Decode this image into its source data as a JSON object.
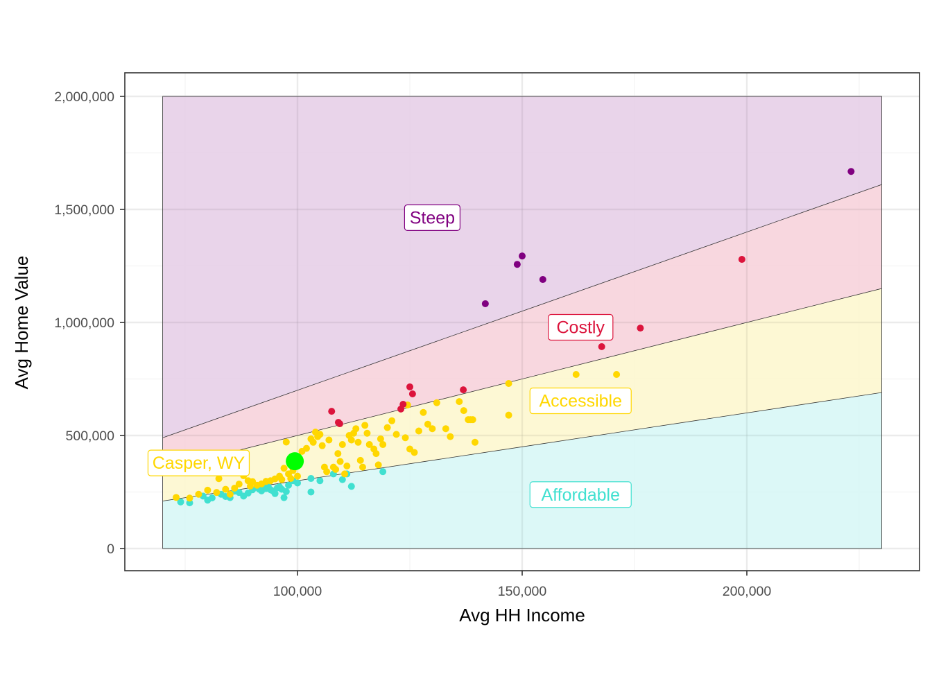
{
  "chart_data": {
    "type": "scatter",
    "title": "",
    "xlabel": "Avg HH Income",
    "ylabel": "Avg Home Value",
    "xlim": [
      62000,
      238000
    ],
    "ylim": [
      -100000,
      2100000
    ],
    "x_ticks": [
      {
        "value": 100000,
        "label": "100,000"
      },
      {
        "value": 150000,
        "label": "150,000"
      },
      {
        "value": 200000,
        "label": "200,000"
      }
    ],
    "y_ticks": [
      {
        "value": 0,
        "label": "0"
      },
      {
        "value": 500000,
        "label": "500,000"
      },
      {
        "value": 1000000,
        "label": "1,000,000"
      },
      {
        "value": 1500000,
        "label": "1,500,000"
      },
      {
        "value": 2000000,
        "label": "2,000,000"
      }
    ],
    "grid": true,
    "legend": "none",
    "regions": {
      "x_range": [
        70000,
        230000
      ],
      "y_max": 2000000,
      "bands": [
        {
          "name": "Affordable",
          "lower_ratio": 0,
          "upper_ratio": 3,
          "fill": "#d6f7f6",
          "color": "#40e0d0"
        },
        {
          "name": "Accessible",
          "lower_ratio": 3,
          "upper_ratio": 5,
          "fill": "#fdf7cc",
          "color": "#ffd700"
        },
        {
          "name": "Costly",
          "lower_ratio": 5,
          "upper_ratio": 7,
          "fill": "#f7d0d9",
          "color": "#dc143c"
        },
        {
          "name": "Steep",
          "lower_ratio": 7,
          "upper_ratio": null,
          "fill": "#e5cce6",
          "color": "#800080"
        }
      ]
    },
    "annotations": [
      {
        "text": "Steep",
        "x": 130000,
        "y": 1465000,
        "color": "#800080"
      },
      {
        "text": "Costly",
        "x": 163000,
        "y": 980000,
        "color": "#dc143c"
      },
      {
        "text": "Accessible",
        "x": 163000,
        "y": 655000,
        "color": "#ffd700"
      },
      {
        "text": "Affordable",
        "x": 163000,
        "y": 240000,
        "color": "#40e0d0"
      },
      {
        "text": "Casper, WY",
        "x": 78000,
        "y": 380000,
        "color": "#ffd700"
      }
    ],
    "highlight": {
      "name": "Casper, WY",
      "x": 99400,
      "y": 386000,
      "color": "#00ff00"
    },
    "series": [
      {
        "name": "Steep",
        "color": "#800080",
        "points": [
          [
            223200,
            1668000
          ],
          [
            150000,
            1294000
          ],
          [
            148900,
            1257000
          ],
          [
            154600,
            1190000
          ],
          [
            141800,
            1083000
          ]
        ]
      },
      {
        "name": "Costly",
        "color": "#dc143c",
        "points": [
          [
            198900,
            1279000
          ],
          [
            176300,
            975000
          ],
          [
            167700,
            893000
          ],
          [
            125000,
            715000
          ],
          [
            125600,
            684000
          ],
          [
            136900,
            702000
          ],
          [
            123500,
            638000
          ],
          [
            123000,
            617000
          ],
          [
            107600,
            607000
          ],
          [
            109100,
            558000
          ],
          [
            109400,
            552000
          ]
        ]
      },
      {
        "name": "Accessible",
        "color": "#ffd700",
        "points": [
          [
            73000,
            226000
          ],
          [
            76000,
            223000
          ],
          [
            78000,
            240000
          ],
          [
            80000,
            258000
          ],
          [
            82000,
            248000
          ],
          [
            82500,
            309000
          ],
          [
            84000,
            262000
          ],
          [
            85000,
            240000
          ],
          [
            86000,
            267000
          ],
          [
            87000,
            285000
          ],
          [
            88000,
            322000
          ],
          [
            89000,
            300000
          ],
          [
            89500,
            276000
          ],
          [
            90000,
            296000
          ],
          [
            91000,
            280000
          ],
          [
            92000,
            286000
          ],
          [
            93000,
            297000
          ],
          [
            94000,
            300000
          ],
          [
            95000,
            308000
          ],
          [
            96000,
            320000
          ],
          [
            96500,
            305000
          ],
          [
            97000,
            355000
          ],
          [
            97500,
            471000
          ],
          [
            98000,
            330000
          ],
          [
            98500,
            310000
          ],
          [
            99000,
            345000
          ],
          [
            100000,
            320000
          ],
          [
            100500,
            395000
          ],
          [
            101000,
            430000
          ],
          [
            102000,
            443000
          ],
          [
            103000,
            485000
          ],
          [
            103500,
            470000
          ],
          [
            104000,
            515000
          ],
          [
            104500,
            495000
          ],
          [
            105000,
            505000
          ],
          [
            105500,
            455000
          ],
          [
            106000,
            360000
          ],
          [
            106500,
            340000
          ],
          [
            107000,
            480000
          ],
          [
            108000,
            360000
          ],
          [
            108500,
            350000
          ],
          [
            109000,
            420000
          ],
          [
            109500,
            385000
          ],
          [
            110000,
            460000
          ],
          [
            110500,
            330000
          ],
          [
            111000,
            365000
          ],
          [
            111500,
            500000
          ],
          [
            112000,
            480000
          ],
          [
            112500,
            510000
          ],
          [
            113000,
            530000
          ],
          [
            113500,
            470000
          ],
          [
            114000,
            390000
          ],
          [
            114500,
            360000
          ],
          [
            115000,
            545000
          ],
          [
            115500,
            510000
          ],
          [
            116000,
            460000
          ],
          [
            117000,
            440000
          ],
          [
            117500,
            420000
          ],
          [
            118000,
            370000
          ],
          [
            118500,
            485000
          ],
          [
            119000,
            460000
          ],
          [
            120000,
            535000
          ],
          [
            121000,
            565000
          ],
          [
            122000,
            505000
          ],
          [
            124000,
            490000
          ],
          [
            124500,
            635000
          ],
          [
            125000,
            440000
          ],
          [
            126000,
            425000
          ],
          [
            127000,
            520000
          ],
          [
            128000,
            602000
          ],
          [
            129000,
            550000
          ],
          [
            130000,
            530000
          ],
          [
            131000,
            645000
          ],
          [
            133000,
            530000
          ],
          [
            134000,
            495000
          ],
          [
            136000,
            650000
          ],
          [
            137000,
            610000
          ],
          [
            138000,
            570000
          ],
          [
            138500,
            570000
          ],
          [
            139000,
            570000
          ],
          [
            139500,
            470000
          ],
          [
            147000,
            730000
          ],
          [
            147000,
            590000
          ],
          [
            162000,
            770000
          ],
          [
            171000,
            770000
          ]
        ]
      },
      {
        "name": "Affordable",
        "color": "#40e0d0",
        "points": [
          [
            74000,
            206000
          ],
          [
            76000,
            202000
          ],
          [
            79000,
            232000
          ],
          [
            80000,
            214000
          ],
          [
            81000,
            224000
          ],
          [
            83000,
            240000
          ],
          [
            84000,
            230000
          ],
          [
            85000,
            225000
          ],
          [
            86000,
            254000
          ],
          [
            87000,
            248000
          ],
          [
            88000,
            232000
          ],
          [
            89000,
            245000
          ],
          [
            90000,
            260000
          ],
          [
            91000,
            270000
          ],
          [
            91500,
            262000
          ],
          [
            92000,
            255000
          ],
          [
            92500,
            270000
          ],
          [
            93000,
            265000
          ],
          [
            93500,
            272000
          ],
          [
            94000,
            260000
          ],
          [
            94500,
            255000
          ],
          [
            95000,
            243000
          ],
          [
            95500,
            268000
          ],
          [
            96000,
            273000
          ],
          [
            96500,
            262000
          ],
          [
            97000,
            225000
          ],
          [
            97500,
            252000
          ],
          [
            98000,
            280000
          ],
          [
            99000,
            300000
          ],
          [
            100000,
            290000
          ],
          [
            103000,
            310000
          ],
          [
            103000,
            250000
          ],
          [
            105000,
            300000
          ],
          [
            108000,
            330000
          ],
          [
            110000,
            305000
          ],
          [
            111000,
            330000
          ],
          [
            112000,
            275000
          ],
          [
            119000,
            340000
          ]
        ]
      }
    ]
  }
}
